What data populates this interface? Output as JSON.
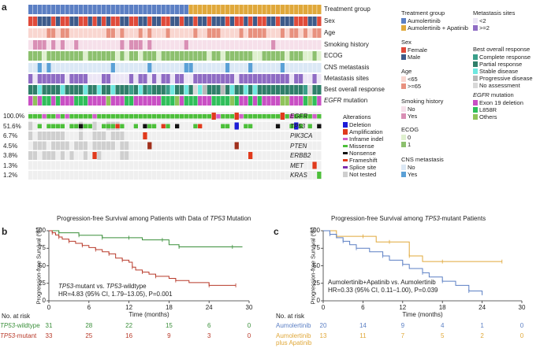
{
  "panel_labels": {
    "a": "a",
    "b": "b",
    "c": "c"
  },
  "oncoprint": {
    "track_labels": [
      "Treatment group",
      "Sex",
      "Age",
      "Smoking history",
      "ECOG",
      "CNS metastasis",
      "Metastasis sites",
      "Best overall response"
    ],
    "egfr_track_label": "EGFR",
    "egfr_track_suffix": " mutation",
    "genes": [
      {
        "name": "EGFR",
        "pct": "100.0%"
      },
      {
        "name": "TP53",
        "pct": "51.6%"
      },
      {
        "name": "PIK3CA",
        "pct": "6.7%"
      },
      {
        "name": "PTEN",
        "pct": "4.5%"
      },
      {
        "name": "ERBB2",
        "pct": "3.8%"
      },
      {
        "name": "MET",
        "pct": "1.3%"
      },
      {
        "name": "KRAS",
        "pct": "1.2%"
      }
    ],
    "n_samples": 64,
    "n_aumolertinib": 35
  },
  "legends": {
    "treatment": {
      "title": "Treatment group",
      "items": [
        {
          "label": "Aumolertinib",
          "color": "#5b7fc4"
        },
        {
          "label": "Aumolertinib + Apatinib",
          "color": "#e0a83a"
        }
      ]
    },
    "sex": {
      "title": "Sex",
      "items": [
        {
          "label": "Female",
          "color": "#e04a3a"
        },
        {
          "label": "Male",
          "color": "#3d5a8a"
        }
      ]
    },
    "age": {
      "title": "Age",
      "items": [
        {
          "label": "<65",
          "color": "#f9d6d0"
        },
        {
          "label": ">=65",
          "color": "#e8917f"
        }
      ]
    },
    "smoking": {
      "title": "Smoking history",
      "items": [
        {
          "label": "No",
          "color": "#f6e0ea"
        },
        {
          "label": "Yes",
          "color": "#d98fb5"
        }
      ]
    },
    "ecog": {
      "title": "ECOG",
      "items": [
        {
          "label": "0",
          "color": "#dff0cf"
        },
        {
          "label": "1",
          "color": "#8cc06e"
        }
      ]
    },
    "cns": {
      "title": "CNS metastasis",
      "items": [
        {
          "label": "No",
          "color": "#dbe8f5"
        },
        {
          "label": "Yes",
          "color": "#5ba0d6"
        }
      ]
    },
    "metsites": {
      "title": "Metastasis sites",
      "items": [
        {
          "label": "<2",
          "color": "#ece6f5"
        },
        {
          "label": ">=2",
          "color": "#8f6cc4"
        }
      ]
    },
    "bor": {
      "title": "Best overall response",
      "items": [
        {
          "label": "Complete response",
          "color": "#3a9f8a"
        },
        {
          "label": "Partial response",
          "color": "#2f7f6a"
        },
        {
          "label": "Stable disease",
          "color": "#6ee8e0"
        },
        {
          "label": "Progressive disease",
          "color": "#b8b8b8"
        },
        {
          "label": "No assessment",
          "color": "#d8d8d8"
        }
      ]
    },
    "egfrmut": {
      "title": "EGFR",
      "title_suffix": " mutation",
      "items": [
        {
          "label": "Exon 19 deletion",
          "color": "#c94fc4"
        },
        {
          "label": "L858R",
          "color": "#2fbf5a"
        },
        {
          "label": "Others",
          "color": "#8fc35a"
        }
      ]
    },
    "alterations": {
      "title": "Alterations",
      "items": [
        {
          "label": "Deletion",
          "color": "#1c1cd8",
          "kind": "full"
        },
        {
          "label": "Amplification",
          "color": "#e03a1c",
          "kind": "full"
        },
        {
          "label": "Inframe indel",
          "color": "#d05ec8",
          "kind": "small"
        },
        {
          "label": "Missense",
          "color": "#4cbf3a",
          "kind": "small"
        },
        {
          "label": "Nonsense",
          "color": "#111111",
          "kind": "small"
        },
        {
          "label": "Frameshift",
          "color": "#e03a1c",
          "kind": "small"
        },
        {
          "label": "Splice site",
          "color": "#7a2fb0",
          "kind": "small"
        },
        {
          "label": "Not tested",
          "color": "#cfcfcf",
          "kind": "full"
        }
      ]
    }
  },
  "chart_data": [
    {
      "type": "line",
      "panel": "b",
      "title_prefix": "Progression-free Survival among Patients with Data of ",
      "title_gene": "TP53",
      "title_suffix": " Mutation",
      "xlabel": "Time (months)",
      "ylabel": "Progression-free Survival (%)",
      "xlim": [
        0,
        30
      ],
      "ylim": [
        0,
        100
      ],
      "xticks": [
        0,
        6,
        12,
        18,
        24,
        30
      ],
      "yticks": [
        0,
        25,
        50,
        75,
        100
      ],
      "series": [
        {
          "name": "TP53-wildtype",
          "color": "#3a8f3a",
          "x": [
            0,
            1.5,
            3,
            4.5,
            6,
            8,
            10,
            12,
            14,
            17,
            18,
            19.5,
            21,
            27.5,
            29
          ],
          "y": [
            100,
            97,
            97,
            93.5,
            93.5,
            90,
            90,
            90,
            87,
            87,
            80,
            77,
            77,
            77,
            77
          ]
        },
        {
          "name": "TP53-mutant",
          "color": "#b83a2a",
          "x": [
            0,
            0.5,
            1,
            1.5,
            2,
            3,
            4,
            5,
            6,
            7,
            8,
            9,
            10,
            11,
            12,
            12.5,
            13,
            14,
            15,
            16,
            18,
            19,
            21,
            24,
            26,
            28
          ],
          "y": [
            100,
            97,
            94,
            91,
            88,
            85,
            82,
            79,
            76,
            73,
            70,
            67,
            61,
            58,
            55,
            48,
            44,
            41,
            38,
            35,
            32,
            29,
            26,
            22,
            22,
            22
          ]
        }
      ],
      "annotation_line1_parts": [
        "TP53",
        "-mutant vs. ",
        "TP53",
        "-wildtype"
      ],
      "annotation_line2": "HR=4.83 (95% CI, 1.79–13.05), P=0.001",
      "risk_title": "No. at risk",
      "risk_rows": [
        {
          "gene": "TP53",
          "suffix": "-wildtype",
          "color": "#3a8f3a",
          "values": [
            "31",
            "28",
            "22",
            "15",
            "6",
            "0"
          ]
        },
        {
          "gene": "TP53",
          "suffix": "-mutant",
          "color": "#b83a2a",
          "values": [
            "33",
            "25",
            "16",
            "9",
            "3",
            "0"
          ]
        }
      ]
    },
    {
      "type": "line",
      "panel": "c",
      "title_prefix": "Progression-free Survival among ",
      "title_gene": "TP53",
      "title_suffix": "-mutant Patients",
      "xlabel": "Time (months)",
      "ylabel": "Progression-free Survival (%)",
      "xlim": [
        0,
        30
      ],
      "ylim": [
        0,
        100
      ],
      "xticks": [
        0,
        6,
        12,
        18,
        24,
        30
      ],
      "yticks": [
        0,
        25,
        50,
        75,
        100
      ],
      "series": [
        {
          "name": "Aumolertinib + Apatinib",
          "color": "#e0a83a",
          "x": [
            0,
            2,
            4,
            6,
            8,
            10,
            12,
            13,
            15,
            18,
            22,
            27
          ],
          "y": [
            100,
            92,
            92,
            92,
            84,
            84,
            84,
            64,
            56,
            56,
            56,
            56
          ]
        },
        {
          "name": "Aumolertinib",
          "color": "#5b7fc4",
          "x": [
            0,
            1,
            2,
            3,
            4,
            5,
            7,
            9,
            10,
            12,
            13,
            15,
            16,
            18,
            20,
            22,
            24
          ],
          "y": [
            100,
            95,
            90,
            85,
            80,
            75,
            70,
            64,
            58,
            52,
            46,
            40,
            34,
            28,
            22,
            14,
            8
          ]
        }
      ],
      "annotation_line1": "Aumolertinib+Apatinib vs. Aumolertinib",
      "annotation_line2": "HR=0.33 (95% CI, 0.11–1.00), P=0.039",
      "risk_title": "No. at risk",
      "risk_rows": [
        {
          "label": "Aumolertinib",
          "color": "#5b7fc4",
          "values": [
            "20",
            "14",
            "9",
            "4",
            "1",
            "0"
          ]
        },
        {
          "label": "Aumolertinib\nplus Apatinib",
          "color": "#e0a83a",
          "values": [
            "13",
            "11",
            "7",
            "5",
            "2",
            "0"
          ]
        }
      ]
    }
  ]
}
